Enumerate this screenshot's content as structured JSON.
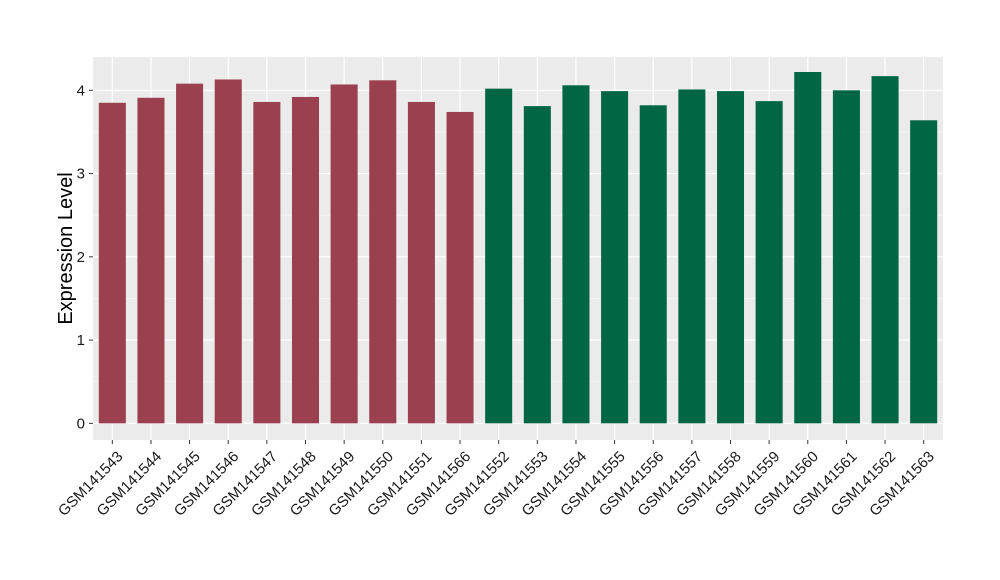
{
  "chart_data": {
    "type": "bar",
    "title": "",
    "xlabel": "",
    "ylabel": "Expression Level",
    "ylim": [
      -0.2,
      4.4
    ],
    "yticks": [
      0,
      1,
      2,
      3,
      4
    ],
    "grid": true,
    "legend": "none",
    "categories": [
      "GSM141543",
      "GSM141544",
      "GSM141545",
      "GSM141546",
      "GSM141547",
      "GSM141548",
      "GSM141549",
      "GSM141550",
      "GSM141551",
      "GSM141566",
      "GSM141552",
      "GSM141553",
      "GSM141554",
      "GSM141555",
      "GSM141556",
      "GSM141557",
      "GSM141558",
      "GSM141559",
      "GSM141560",
      "GSM141561",
      "GSM141562",
      "GSM141563"
    ],
    "values": [
      3.85,
      3.91,
      4.08,
      4.13,
      3.86,
      3.92,
      4.07,
      4.12,
      3.86,
      3.74,
      4.02,
      3.81,
      4.06,
      3.99,
      3.82,
      4.01,
      3.99,
      3.87,
      4.22,
      4.0,
      4.17,
      3.64
    ],
    "bar_colors": [
      "#9b404f",
      "#9b404f",
      "#9b404f",
      "#9b404f",
      "#9b404f",
      "#9b404f",
      "#9b404f",
      "#9b404f",
      "#9b404f",
      "#9b404f",
      "#006644",
      "#006644",
      "#006644",
      "#006644",
      "#006644",
      "#006644",
      "#006644",
      "#006644",
      "#006644",
      "#006644",
      "#006644",
      "#006644"
    ]
  },
  "colors": {
    "panel_background": "#ebebeb",
    "grid_major": "#ffffff",
    "grid_minor": "#f5f5f5",
    "tick_mark": "#333333"
  }
}
